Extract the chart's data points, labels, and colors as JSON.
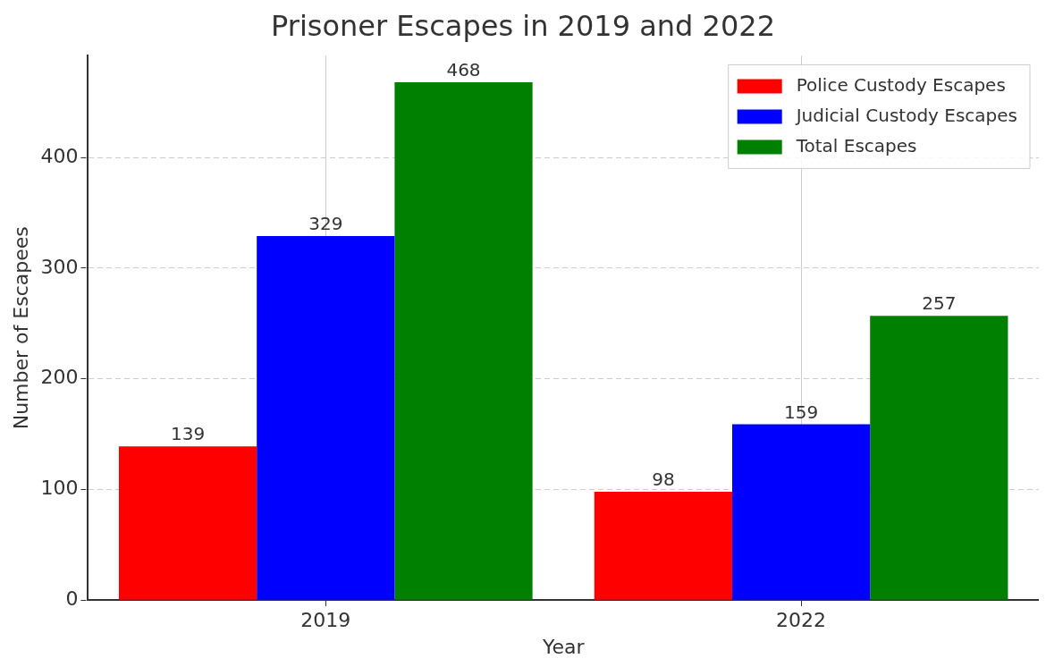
{
  "chart_data": {
    "type": "bar",
    "title": "Prisoner Escapes in 2019 and 2022",
    "xlabel": "Year",
    "ylabel": "Number of Escapees",
    "categories": [
      "2019",
      "2022"
    ],
    "series": [
      {
        "name": "Police Custody Escapes",
        "color": "#ff0000",
        "values": [
          139,
          98
        ]
      },
      {
        "name": "Judicial Custody Escapes",
        "color": "#0000ff",
        "values": [
          329,
          159
        ]
      },
      {
        "name": "Total Escapes",
        "color": "#008000",
        "values": [
          468,
          257
        ]
      }
    ],
    "ylim": [
      0,
      492
    ],
    "yticks": [
      0,
      100,
      200,
      300,
      400
    ],
    "grid": true,
    "legend": "top right",
    "data_labels": true
  }
}
